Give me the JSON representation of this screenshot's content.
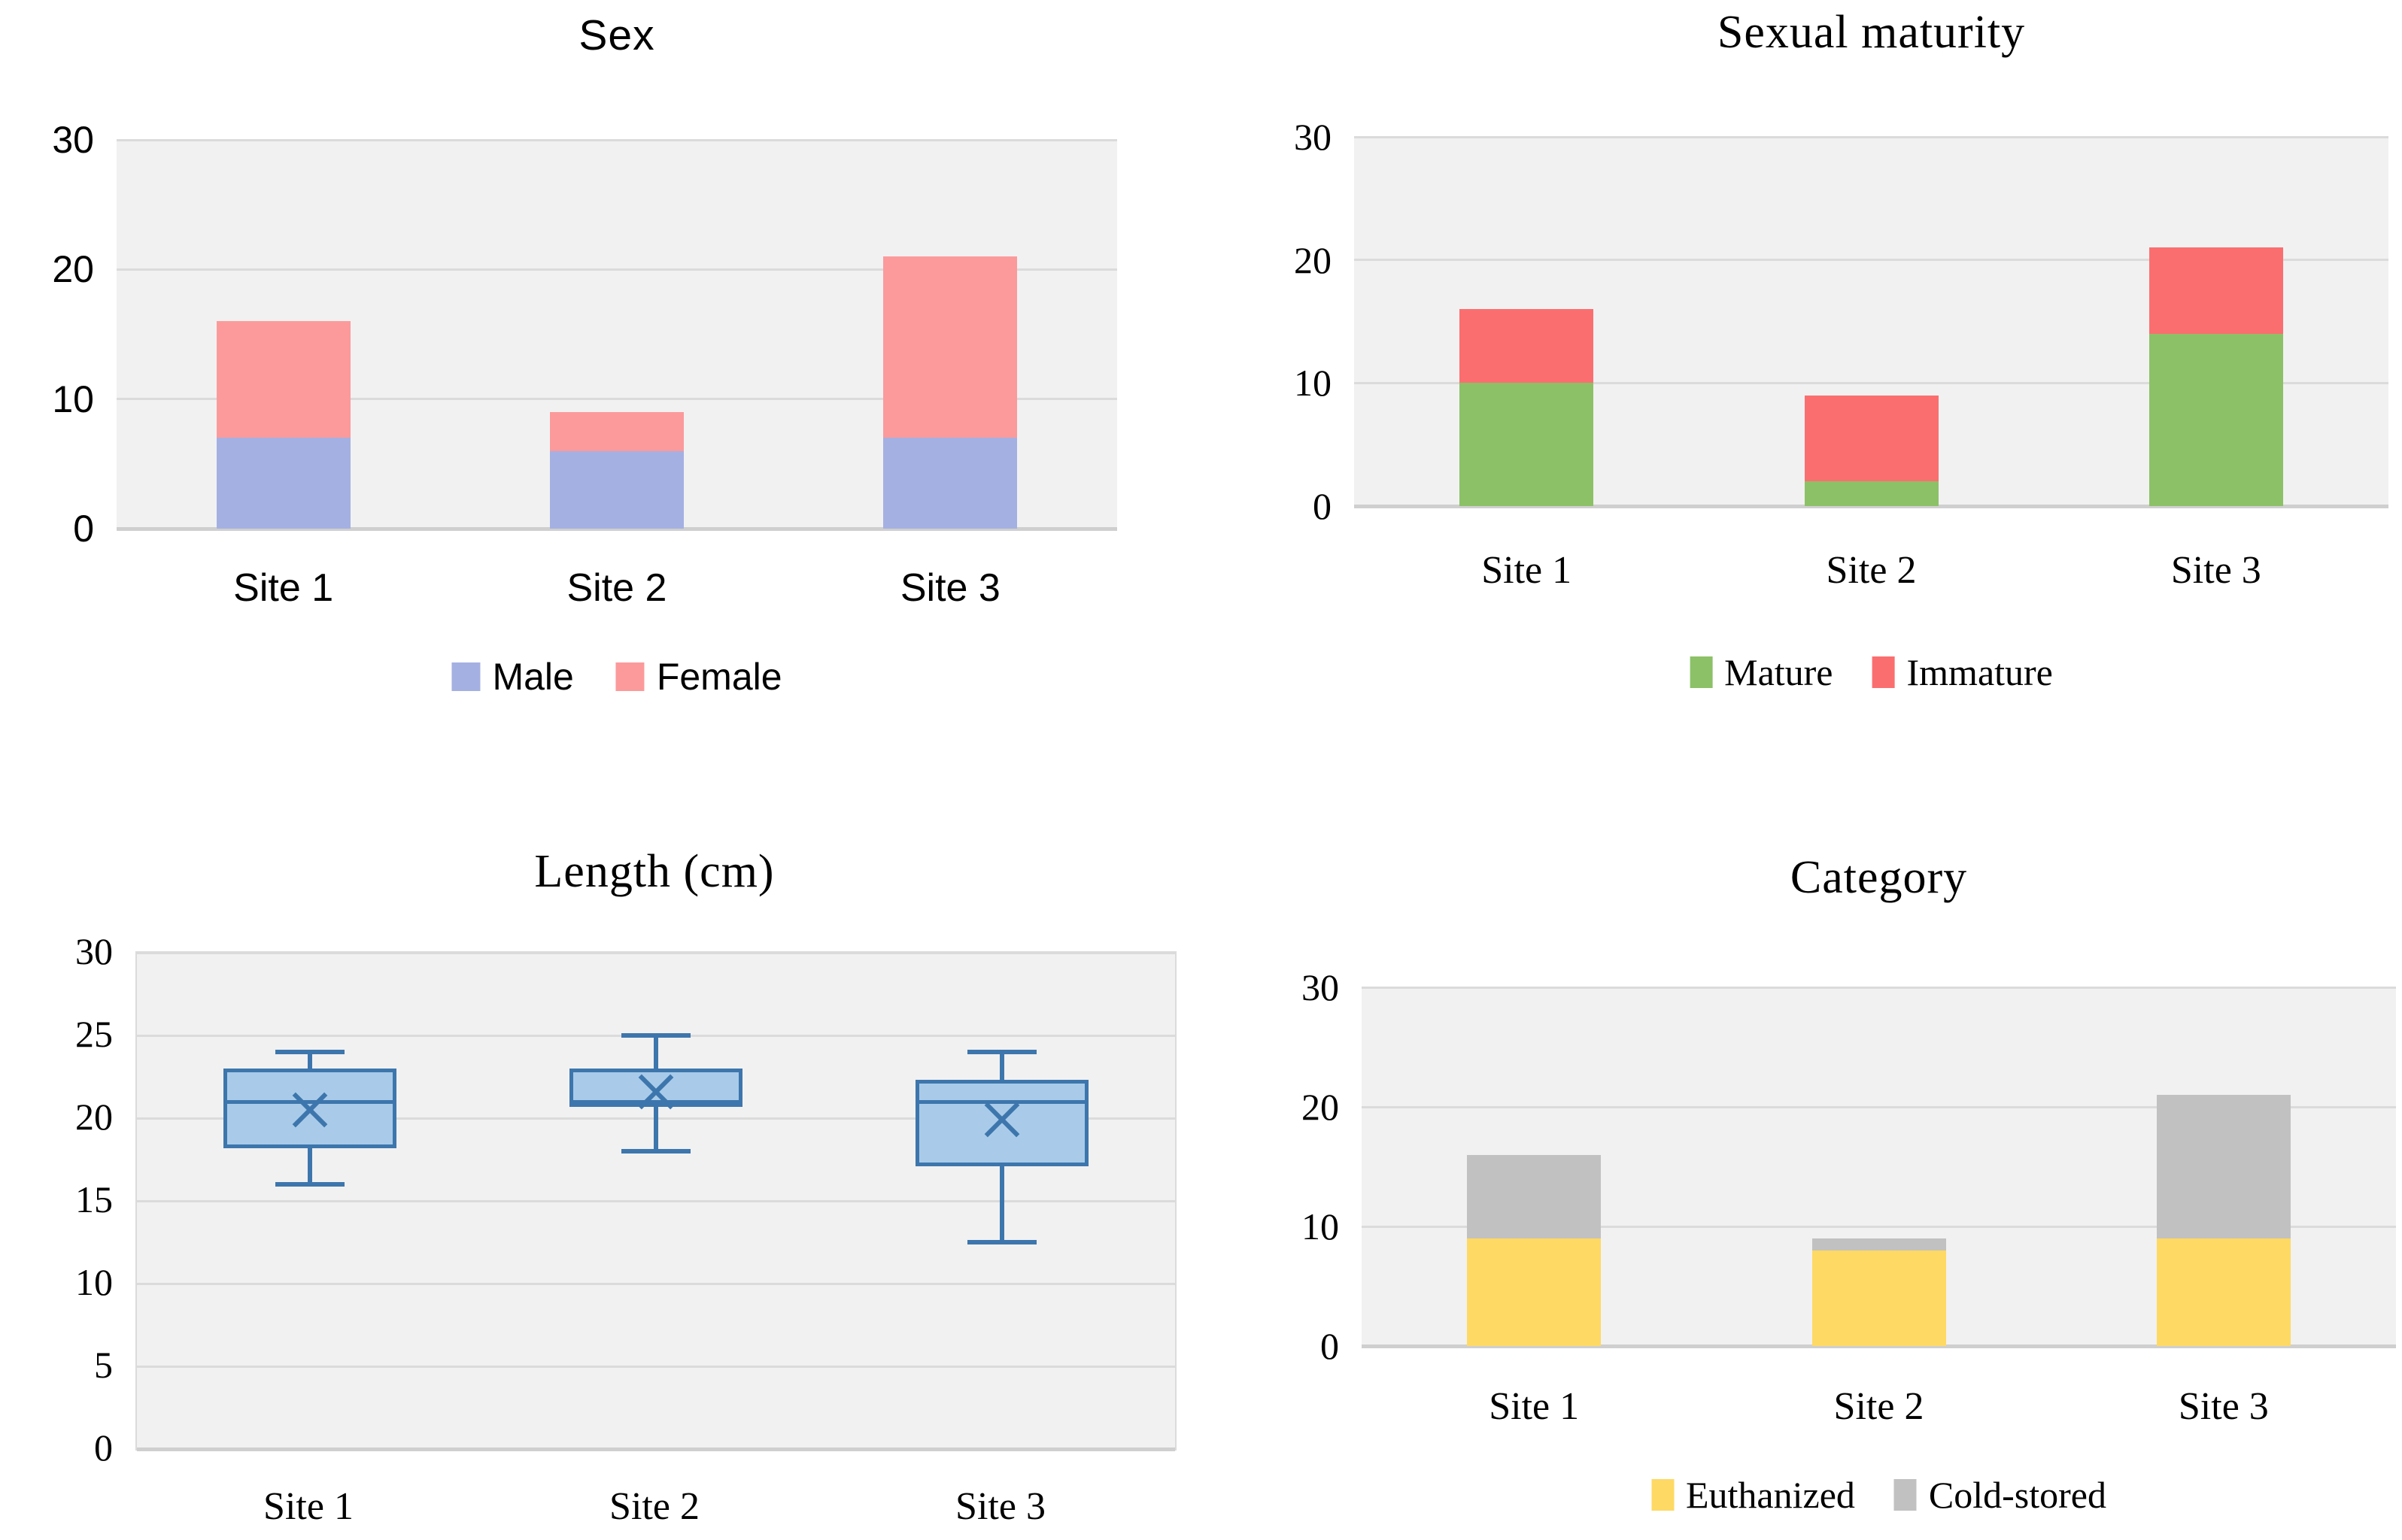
{
  "style": {
    "background": "#FFFFFF",
    "plot_bg": "#F1F1F2",
    "gridline": "#DBDBDB",
    "baseline": "#CFCFCF",
    "text": "#000000"
  },
  "chart_data": [
    {
      "type": "stacked-bar",
      "title": "Sex",
      "categories": [
        "Site 1",
        "Site 2",
        "Site 3"
      ],
      "series": [
        {
          "name": "Male",
          "color": "#A5B0E2",
          "values": [
            7,
            6,
            7
          ]
        },
        {
          "name": "Female",
          "color": "#FC9A9B",
          "values": [
            9,
            3,
            14
          ]
        }
      ],
      "totals": [
        16,
        9,
        21
      ],
      "ylim": [
        0,
        30
      ],
      "yticks": [
        0,
        10,
        20,
        30
      ],
      "grid": true,
      "legend_position": "bottom"
    },
    {
      "type": "stacked-bar",
      "title": "Sexual maturity",
      "categories": [
        "Site 1",
        "Site 2",
        "Site 3"
      ],
      "series": [
        {
          "name": "Mature",
          "color": "#8CC167",
          "values": [
            10,
            2,
            14
          ]
        },
        {
          "name": "Immature",
          "color": "#FB6E6F",
          "values": [
            6,
            7,
            7
          ]
        }
      ],
      "totals": [
        16,
        9,
        21
      ],
      "ylim": [
        0,
        30
      ],
      "yticks": [
        0,
        10,
        20,
        30
      ],
      "grid": true,
      "legend_position": "bottom"
    },
    {
      "type": "box",
      "title": "Length (cm)",
      "categories": [
        "Site 1",
        "Site 2",
        "Site 3"
      ],
      "box_fill": "#A9CBE9",
      "box_border": "#3D76AC",
      "boxes": [
        {
          "category": "Site 1",
          "min": 16,
          "q1": 18.2,
          "median": 21,
          "q3": 23,
          "max": 24,
          "mean": 20.5
        },
        {
          "category": "Site 2",
          "min": 18,
          "q1": 20.7,
          "median": 21,
          "q3": 23,
          "max": 25,
          "mean": 21.6
        },
        {
          "category": "Site 3",
          "min": 12.5,
          "q1": 17.1,
          "median": 21,
          "q3": 22.3,
          "max": 24,
          "mean": 19.9
        }
      ],
      "ylim": [
        0,
        30
      ],
      "yticks": [
        0,
        5,
        10,
        15,
        20,
        25,
        30
      ],
      "grid": true,
      "legend_position": "none"
    },
    {
      "type": "stacked-bar",
      "title": "Category",
      "categories": [
        "Site 1",
        "Site 2",
        "Site 3"
      ],
      "series": [
        {
          "name": "Euthanized",
          "color": "#FED964",
          "values": [
            9,
            8,
            9
          ]
        },
        {
          "name": "Cold-stored",
          "color": "#C1C1C1",
          "values": [
            7,
            1,
            12
          ]
        }
      ],
      "totals": [
        16,
        9,
        21
      ],
      "ylim": [
        0,
        30
      ],
      "yticks": [
        0,
        10,
        20,
        30
      ],
      "grid": true,
      "legend_position": "bottom"
    }
  ]
}
